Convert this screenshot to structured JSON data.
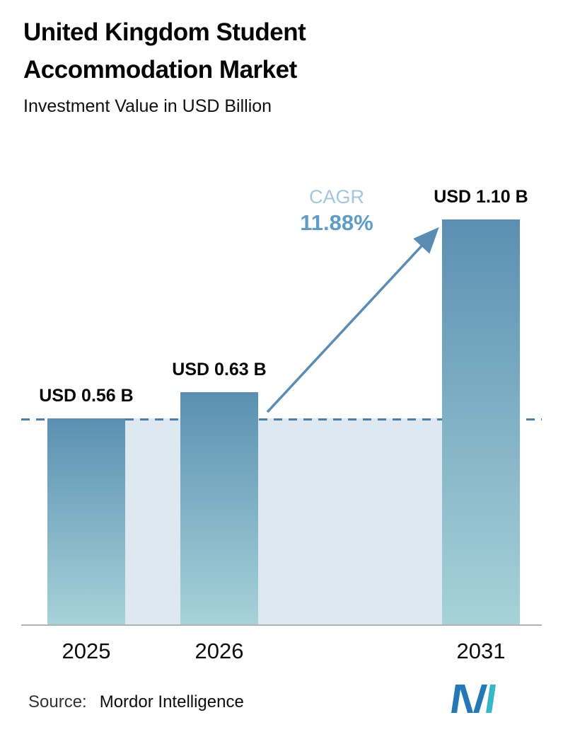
{
  "title": "United Kingdom Student Accommodation Market",
  "subtitle": "Investment Value in USD Billion",
  "cagr": {
    "label": "CAGR",
    "value": "11.88%"
  },
  "source": {
    "label": "Source:",
    "value": "Mordor Intelligence"
  },
  "chart_data": {
    "type": "bar",
    "title": "United Kingdom Student Accommodation Market",
    "subtitle": "Investment Value in USD Billion",
    "categories": [
      "2025",
      "2026",
      "2031"
    ],
    "values": [
      0.56,
      0.63,
      1.1
    ],
    "value_labels": [
      "USD 0.56 B",
      "USD 0.63 B",
      "USD 1.10 B"
    ],
    "xlabel": "",
    "ylabel": "Investment Value in USD Billion",
    "ylim": [
      0,
      1.2
    ],
    "grid": false,
    "legend": false,
    "dashed_reference_value": 0.56,
    "annotations": [
      {
        "text": "CAGR 11.88%",
        "from_category": "2026",
        "to_category": "2031",
        "style": "arrow"
      }
    ]
  },
  "colors": {
    "bar_top": "#5b90b2",
    "bar_bottom": "#a6d2d8",
    "dashed_line": "#4d80a6",
    "shade": "#dde8f1",
    "arrow": "#5b8db4",
    "cagr_label": "#a3c6de",
    "cagr_value": "#5f9cc6",
    "axis_line": "#b3b3b3",
    "logo_blue": "#2279b5",
    "logo_teal": "#35b7c6"
  },
  "icons": {
    "growth_arrow": "arrow-up-right",
    "brand_logo": "mordor-intelligence-logo"
  }
}
